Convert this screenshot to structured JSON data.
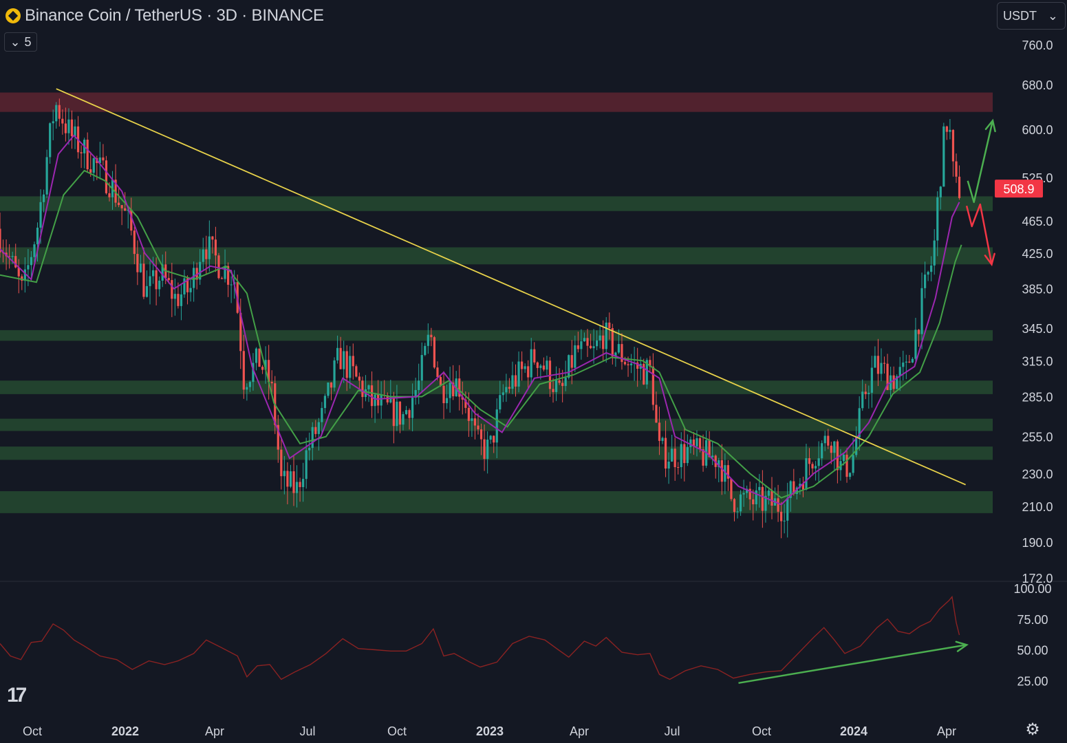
{
  "header": {
    "symbol_title": "Binance Coin / TetherUS · 3D · BINANCE",
    "indicator_count": "5",
    "currency": "USDT",
    "watermark": "17"
  },
  "colors": {
    "background": "#141823",
    "up_candle": "#26a69a",
    "down_candle": "#ef5350",
    "resistance_zone": "#5c2430",
    "support_zone": "#244a30",
    "trendline": "#e8d24a",
    "ema_fast": "#9c27b0",
    "ema_slow": "#43a047",
    "rsi_line": "#8b2222",
    "arrow_up": "#4caf50",
    "arrow_down": "#f23645",
    "last_price_badge": "#f23645"
  },
  "icons": {
    "collapse": "chevron-down-icon",
    "currency_dropdown": "chevron-down-icon",
    "settings": "gear-icon",
    "logo": "binance-logo-icon"
  },
  "chart_data": {
    "type": "candlestick",
    "title": "Binance Coin / TetherUS · 3D · BINANCE",
    "price_axis": {
      "scale": "log",
      "ticks": [
        "760.0",
        "680.0",
        "600.0",
        "525.0",
        "465.0",
        "425.0",
        "385.0",
        "345.0",
        "315.0",
        "285.0",
        "255.0",
        "230.0",
        "210.0",
        "190.0",
        "172.0"
      ]
    },
    "rsi_axis": {
      "ticks": [
        "100.00",
        "75.00",
        "50.00",
        "25.00"
      ]
    },
    "time_axis": {
      "labels": [
        "Oct",
        "2022",
        "Apr",
        "Jul",
        "Oct",
        "2023",
        "Apr",
        "Jul",
        "Oct",
        "2024",
        "Apr"
      ],
      "bold": [
        false,
        true,
        false,
        false,
        false,
        true,
        false,
        false,
        false,
        true,
        false
      ]
    },
    "last_price": "508.9",
    "x_range": [
      "2021-09-15",
      "2024-04-25"
    ],
    "y_range": [
      172,
      770
    ],
    "zones": [
      {
        "kind": "resistance",
        "low": 630,
        "high": 665
      },
      {
        "kind": "support",
        "low": 478,
        "high": 498
      },
      {
        "kind": "support",
        "low": 412,
        "high": 432
      },
      {
        "kind": "support",
        "low": 333,
        "high": 343
      },
      {
        "kind": "support",
        "low": 287,
        "high": 298
      },
      {
        "kind": "support",
        "low": 259,
        "high": 268
      },
      {
        "kind": "support",
        "low": 239,
        "high": 248
      },
      {
        "kind": "support",
        "low": 206,
        "high": 219
      }
    ],
    "trendline": {
      "start": [
        "2021-11-08",
        672
      ],
      "end": [
        "2024-03-30",
        223
      ]
    },
    "scenario_arrows": {
      "bullish": [
        [
          "2024-04-01",
          520
        ],
        [
          "2024-04-07",
          490
        ],
        [
          "2024-04-25",
          615
        ]
      ],
      "bearish": [
        [
          "2024-03-31",
          485
        ],
        [
          "2024-04-05",
          458
        ],
        [
          "2024-04-13",
          487
        ],
        [
          "2024-04-24",
          412
        ]
      ]
    },
    "rsi_divergence_arrow": {
      "start": [
        "2023-08-25",
        23
      ],
      "end": [
        "2024-03-31",
        54
      ]
    },
    "anchors": [
      [
        "2021-09-15",
        455
      ],
      [
        "2021-10-10",
        380
      ],
      [
        "2021-10-25",
        465
      ],
      [
        "2021-11-10",
        645
      ],
      [
        "2021-11-25",
        590
      ],
      [
        "2021-12-10",
        560
      ],
      [
        "2022-01-01",
        520
      ],
      [
        "2022-01-20",
        460
      ],
      [
        "2022-02-05",
        380
      ],
      [
        "2022-02-20",
        400
      ],
      [
        "2022-03-05",
        375
      ],
      [
        "2022-03-20",
        385
      ],
      [
        "2022-04-01",
        440
      ],
      [
        "2022-04-15",
        415
      ],
      [
        "2022-05-01",
        395
      ],
      [
        "2022-05-10",
        300
      ],
      [
        "2022-05-25",
        315
      ],
      [
        "2022-06-05",
        295
      ],
      [
        "2022-06-15",
        225
      ],
      [
        "2022-06-30",
        220
      ],
      [
        "2022-07-10",
        245
      ],
      [
        "2022-07-25",
        270
      ],
      [
        "2022-08-10",
        320
      ],
      [
        "2022-08-25",
        300
      ],
      [
        "2022-09-10",
        280
      ],
      [
        "2022-09-25",
        275
      ],
      [
        "2022-10-10",
        270
      ],
      [
        "2022-10-25",
        295
      ],
      [
        "2022-11-05",
        340
      ],
      [
        "2022-11-15",
        290
      ],
      [
        "2022-11-25",
        300
      ],
      [
        "2022-12-05",
        292
      ],
      [
        "2022-12-20",
        250
      ],
      [
        "2023-01-01",
        245
      ],
      [
        "2023-01-15",
        290
      ],
      [
        "2023-02-01",
        305
      ],
      [
        "2023-02-15",
        320
      ],
      [
        "2023-03-01",
        300
      ],
      [
        "2023-03-10",
        285
      ],
      [
        "2023-03-25",
        325
      ],
      [
        "2023-04-10",
        320
      ],
      [
        "2023-04-20",
        340
      ],
      [
        "2023-05-01",
        325
      ],
      [
        "2023-05-20",
        310
      ],
      [
        "2023-06-05",
        305
      ],
      [
        "2023-06-12",
        245
      ],
      [
        "2023-06-25",
        242
      ],
      [
        "2023-07-10",
        245
      ],
      [
        "2023-07-25",
        242
      ],
      [
        "2023-08-10",
        240
      ],
      [
        "2023-08-20",
        215
      ],
      [
        "2023-09-10",
        213
      ],
      [
        "2023-09-25",
        212
      ],
      [
        "2023-10-10",
        210
      ],
      [
        "2023-10-25",
        225
      ],
      [
        "2023-11-10",
        245
      ],
      [
        "2023-11-25",
        255
      ],
      [
        "2023-12-05",
        232
      ],
      [
        "2023-12-15",
        238
      ],
      [
        "2023-12-28",
        290
      ],
      [
        "2024-01-05",
        310
      ],
      [
        "2024-01-15",
        305
      ],
      [
        "2024-01-25",
        300
      ],
      [
        "2024-02-05",
        305
      ],
      [
        "2024-02-15",
        345
      ],
      [
        "2024-02-25",
        395
      ],
      [
        "2024-03-02",
        420
      ],
      [
        "2024-03-08",
        520
      ],
      [
        "2024-03-14",
        610
      ],
      [
        "2024-03-17",
        615
      ],
      [
        "2024-03-20",
        540
      ],
      [
        "2024-03-24",
        509
      ]
    ],
    "ema_fast": [
      [
        "2021-09-15",
        430
      ],
      [
        "2021-10-15",
        395
      ],
      [
        "2021-11-10",
        560
      ],
      [
        "2021-11-25",
        590
      ],
      [
        "2021-12-15",
        555
      ],
      [
        "2022-01-10",
        505
      ],
      [
        "2022-02-01",
        425
      ],
      [
        "2022-03-01",
        385
      ],
      [
        "2022-04-05",
        410
      ],
      [
        "2022-04-25",
        405
      ],
      [
        "2022-05-15",
        310
      ],
      [
        "2022-06-20",
        240
      ],
      [
        "2022-07-20",
        255
      ],
      [
        "2022-08-10",
        300
      ],
      [
        "2022-09-10",
        283
      ],
      [
        "2022-10-20",
        285
      ],
      [
        "2022-11-15",
        305
      ],
      [
        "2022-12-15",
        272
      ],
      [
        "2023-01-10",
        258
      ],
      [
        "2023-02-10",
        300
      ],
      [
        "2023-03-15",
        305
      ],
      [
        "2023-04-20",
        322
      ],
      [
        "2023-05-20",
        312
      ],
      [
        "2023-06-10",
        300
      ],
      [
        "2023-06-25",
        255
      ],
      [
        "2023-07-25",
        244
      ],
      [
        "2023-08-25",
        222
      ],
      [
        "2023-10-05",
        211
      ],
      [
        "2023-11-05",
        230
      ],
      [
        "2023-12-05",
        244
      ],
      [
        "2023-12-28",
        265
      ],
      [
        "2024-01-15",
        295
      ],
      [
        "2024-02-10",
        310
      ],
      [
        "2024-03-01",
        375
      ],
      [
        "2024-03-17",
        470
      ],
      [
        "2024-03-24",
        490
      ]
    ],
    "ema_slow": [
      [
        "2021-09-15",
        400
      ],
      [
        "2021-10-20",
        392
      ],
      [
        "2021-11-15",
        500
      ],
      [
        "2021-12-05",
        535
      ],
      [
        "2021-12-25",
        520
      ],
      [
        "2022-01-25",
        470
      ],
      [
        "2022-02-20",
        405
      ],
      [
        "2022-03-20",
        395
      ],
      [
        "2022-04-20",
        410
      ],
      [
        "2022-05-10",
        380
      ],
      [
        "2022-06-05",
        280
      ],
      [
        "2022-06-30",
        250
      ],
      [
        "2022-07-25",
        255
      ],
      [
        "2022-08-25",
        290
      ],
      [
        "2022-09-25",
        285
      ],
      [
        "2022-10-25",
        285
      ],
      [
        "2022-11-20",
        298
      ],
      [
        "2022-12-20",
        275
      ],
      [
        "2023-01-15",
        262
      ],
      [
        "2023-02-15",
        295
      ],
      [
        "2023-03-20",
        303
      ],
      [
        "2023-04-25",
        318
      ],
      [
        "2023-05-25",
        315
      ],
      [
        "2023-06-10",
        305
      ],
      [
        "2023-07-05",
        260
      ],
      [
        "2023-08-05",
        250
      ],
      [
        "2023-09-05",
        230
      ],
      [
        "2023-10-05",
        215
      ],
      [
        "2023-11-05",
        222
      ],
      [
        "2023-12-05",
        237
      ],
      [
        "2023-12-28",
        255
      ],
      [
        "2024-01-20",
        287
      ],
      [
        "2024-02-15",
        305
      ],
      [
        "2024-03-05",
        350
      ],
      [
        "2024-03-20",
        415
      ],
      [
        "2024-03-26",
        435
      ]
    ],
    "rsi": [
      [
        "2021-09-15",
        55
      ],
      [
        "2021-09-25",
        45
      ],
      [
        "2021-10-05",
        42
      ],
      [
        "2021-10-15",
        56
      ],
      [
        "2021-10-25",
        57
      ],
      [
        "2021-11-05",
        71
      ],
      [
        "2021-11-15",
        66
      ],
      [
        "2021-11-25",
        58
      ],
      [
        "2021-12-05",
        53
      ],
      [
        "2021-12-20",
        45
      ],
      [
        "2022-01-05",
        42
      ],
      [
        "2022-01-20",
        34
      ],
      [
        "2022-02-05",
        41
      ],
      [
        "2022-02-20",
        38
      ],
      [
        "2022-03-05",
        41
      ],
      [
        "2022-03-20",
        47
      ],
      [
        "2022-04-01",
        58
      ],
      [
        "2022-04-15",
        52
      ],
      [
        "2022-05-01",
        45
      ],
      [
        "2022-05-10",
        28
      ],
      [
        "2022-05-20",
        37
      ],
      [
        "2022-06-01",
        38
      ],
      [
        "2022-06-12",
        26
      ],
      [
        "2022-06-25",
        32
      ],
      [
        "2022-07-10",
        38
      ],
      [
        "2022-07-25",
        47
      ],
      [
        "2022-08-10",
        59
      ],
      [
        "2022-08-25",
        51
      ],
      [
        "2022-09-10",
        50
      ],
      [
        "2022-09-25",
        49
      ],
      [
        "2022-10-10",
        49
      ],
      [
        "2022-10-25",
        55
      ],
      [
        "2022-11-05",
        67
      ],
      [
        "2022-11-15",
        45
      ],
      [
        "2022-11-25",
        47
      ],
      [
        "2022-12-10",
        40
      ],
      [
        "2022-12-20",
        36
      ],
      [
        "2023-01-05",
        40
      ],
      [
        "2023-01-20",
        55
      ],
      [
        "2023-02-05",
        61
      ],
      [
        "2023-02-20",
        58
      ],
      [
        "2023-03-05",
        50
      ],
      [
        "2023-03-15",
        44
      ],
      [
        "2023-03-30",
        57
      ],
      [
        "2023-04-10",
        53
      ],
      [
        "2023-04-20",
        60
      ],
      [
        "2023-05-05",
        48
      ],
      [
        "2023-05-20",
        46
      ],
      [
        "2023-06-01",
        47
      ],
      [
        "2023-06-10",
        30
      ],
      [
        "2023-06-20",
        26
      ],
      [
        "2023-07-05",
        33
      ],
      [
        "2023-07-20",
        37
      ],
      [
        "2023-08-05",
        34
      ],
      [
        "2023-08-20",
        27
      ],
      [
        "2023-09-05",
        30
      ],
      [
        "2023-09-20",
        32
      ],
      [
        "2023-10-05",
        33
      ],
      [
        "2023-10-20",
        46
      ],
      [
        "2023-11-05",
        60
      ],
      [
        "2023-11-15",
        68
      ],
      [
        "2023-11-25",
        58
      ],
      [
        "2023-12-05",
        47
      ],
      [
        "2023-12-20",
        53
      ],
      [
        "2024-01-05",
        68
      ],
      [
        "2024-01-15",
        75
      ],
      [
        "2024-01-25",
        65
      ],
      [
        "2024-02-05",
        63
      ],
      [
        "2024-02-15",
        69
      ],
      [
        "2024-02-25",
        73
      ],
      [
        "2024-03-05",
        83
      ],
      [
        "2024-03-14",
        90
      ],
      [
        "2024-03-17",
        93
      ],
      [
        "2024-03-21",
        72
      ],
      [
        "2024-03-24",
        62
      ]
    ]
  }
}
